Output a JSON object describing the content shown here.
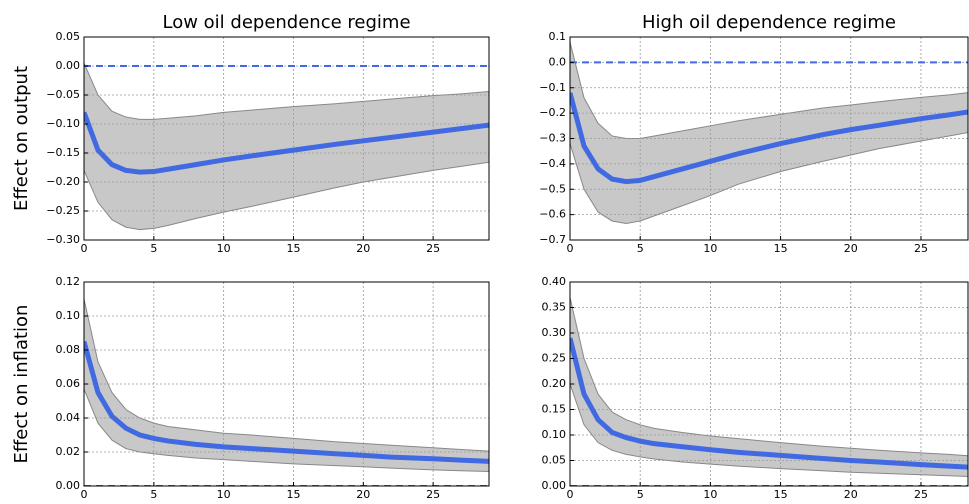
{
  "chart_data": [
    {
      "type": "line",
      "title": "Low oil dependence regime",
      "ylabel": "Effect on output",
      "x": [
        0,
        1,
        2,
        3,
        4,
        5,
        6,
        8,
        10,
        12,
        15,
        18,
        20,
        22,
        25,
        27,
        29
      ],
      "series": [
        {
          "color": "#4169e1",
          "values": [
            -0.08,
            -0.145,
            -0.17,
            -0.18,
            -0.183,
            -0.182,
            -0.178,
            -0.17,
            -0.162,
            -0.155,
            -0.145,
            -0.135,
            -0.129,
            -0.123,
            -0.114,
            -0.108,
            -0.102
          ]
        }
      ],
      "band": {
        "color": "#c8c8c8",
        "lower": [
          -0.18,
          -0.235,
          -0.265,
          -0.278,
          -0.282,
          -0.28,
          -0.275,
          -0.263,
          -0.252,
          -0.242,
          -0.226,
          -0.21,
          -0.2,
          -0.192,
          -0.18,
          -0.173,
          -0.166
        ],
        "upper": [
          0.005,
          -0.05,
          -0.078,
          -0.088,
          -0.092,
          -0.092,
          -0.09,
          -0.086,
          -0.08,
          -0.076,
          -0.07,
          -0.065,
          -0.061,
          -0.057,
          -0.051,
          -0.048,
          -0.044
        ]
      },
      "hline": 0,
      "hline_color": "#4169e1",
      "xlim": [
        0,
        29
      ],
      "ylim": [
        -0.3,
        0.05
      ],
      "xticks": [
        0,
        5,
        10,
        15,
        20,
        25
      ],
      "yticks": [
        0.05,
        {
          "value": 0,
          "label": "0.00"
        },
        {
          "value": -0.05,
          "label": "−0.05"
        },
        {
          "value": -0.1,
          "label": "−0.10"
        },
        {
          "value": -0.15,
          "label": "−0.15"
        },
        {
          "value": -0.2,
          "label": "−0.20"
        },
        {
          "value": -0.25,
          "label": "−0.25"
        },
        {
          "value": -0.3,
          "label": "−0.30"
        }
      ],
      "grid": true
    },
    {
      "type": "line",
      "title": "High oil dependence regime",
      "x": [
        0,
        1,
        2,
        3,
        4,
        5,
        6,
        8,
        10,
        12,
        15,
        18,
        20,
        22,
        25,
        27,
        29
      ],
      "series": [
        {
          "color": "#4169e1",
          "values": [
            -0.12,
            -0.33,
            -0.42,
            -0.46,
            -0.47,
            -0.465,
            -0.45,
            -0.42,
            -0.39,
            -0.36,
            -0.32,
            -0.285,
            -0.265,
            -0.248,
            -0.222,
            -0.207,
            -0.19
          ]
        }
      ],
      "band": {
        "color": "#c8c8c8",
        "lower": [
          -0.32,
          -0.5,
          -0.59,
          -0.625,
          -0.635,
          -0.625,
          -0.605,
          -0.565,
          -0.525,
          -0.48,
          -0.43,
          -0.39,
          -0.365,
          -0.34,
          -0.31,
          -0.29,
          -0.27
        ],
        "upper": [
          0.08,
          -0.14,
          -0.24,
          -0.29,
          -0.3,
          -0.3,
          -0.29,
          -0.27,
          -0.25,
          -0.23,
          -0.205,
          -0.18,
          -0.168,
          -0.155,
          -0.138,
          -0.128,
          -0.115
        ]
      },
      "hline": 0,
      "hline_color": "#4169e1",
      "xlim": [
        0,
        28.35
      ],
      "ylim": [
        -0.7,
        0.1
      ],
      "xticks": [
        0,
        5,
        10,
        15,
        20,
        25
      ],
      "yticks": [
        0.1,
        {
          "value": 0,
          "label": "0.0"
        },
        {
          "value": -0.1,
          "label": "−0.1"
        },
        {
          "value": -0.2,
          "label": "−0.2"
        },
        {
          "value": -0.3,
          "label": "−0.3"
        },
        {
          "value": -0.4,
          "label": "−0.4"
        },
        {
          "value": -0.5,
          "label": "−0.5"
        },
        {
          "value": -0.6,
          "label": "−0.6"
        },
        {
          "value": -0.7,
          "label": "−0.7"
        }
      ],
      "grid": true
    },
    {
      "type": "line",
      "ylabel": "Effect on inflation",
      "x": [
        0,
        1,
        2,
        3,
        4,
        5,
        6,
        8,
        10,
        12,
        15,
        18,
        20,
        22,
        25,
        27,
        29
      ],
      "series": [
        {
          "color": "#4169e1",
          "values": [
            0.085,
            0.055,
            0.041,
            0.034,
            0.03,
            0.028,
            0.0265,
            0.0245,
            0.023,
            0.022,
            0.0205,
            0.019,
            0.018,
            0.017,
            0.016,
            0.0152,
            0.0145
          ]
        }
      ],
      "band": {
        "color": "#c8c8c8",
        "lower": [
          0.057,
          0.037,
          0.027,
          0.022,
          0.02,
          0.019,
          0.018,
          0.0165,
          0.0155,
          0.0145,
          0.013,
          0.012,
          0.0113,
          0.0105,
          0.0095,
          0.009,
          0.0085
        ],
        "upper": [
          0.11,
          0.073,
          0.055,
          0.045,
          0.04,
          0.037,
          0.035,
          0.033,
          0.031,
          0.03,
          0.028,
          0.026,
          0.025,
          0.024,
          0.0225,
          0.0215,
          0.0205
        ]
      },
      "hline": 0,
      "hline_color": "#4169e1",
      "xlim": [
        0,
        29
      ],
      "ylim": [
        0,
        0.12
      ],
      "xticks": [
        0,
        5,
        10,
        15,
        20,
        25
      ],
      "yticks": [
        {
          "value": 0,
          "label": "0.00"
        },
        0.02,
        0.04,
        0.06,
        0.08,
        {
          "value": 0.1,
          "label": "0.10"
        },
        0.12
      ],
      "grid": true
    },
    {
      "type": "line",
      "x": [
        0,
        1,
        2,
        3,
        4,
        5,
        6,
        8,
        10,
        12,
        15,
        18,
        20,
        22,
        25,
        27,
        29
      ],
      "series": [
        {
          "color": "#4169e1",
          "values": [
            0.29,
            0.18,
            0.13,
            0.105,
            0.095,
            0.088,
            0.083,
            0.077,
            0.071,
            0.066,
            0.06,
            0.054,
            0.05,
            0.047,
            0.042,
            0.039,
            0.036
          ]
        }
      ],
      "band": {
        "color": "#c8c8c8",
        "lower": [
          0.2,
          0.12,
          0.085,
          0.07,
          0.062,
          0.057,
          0.053,
          0.047,
          0.043,
          0.039,
          0.034,
          0.03,
          0.027,
          0.025,
          0.022,
          0.02,
          0.018
        ],
        "upper": [
          0.37,
          0.25,
          0.18,
          0.145,
          0.13,
          0.12,
          0.113,
          0.105,
          0.098,
          0.093,
          0.085,
          0.078,
          0.074,
          0.07,
          0.065,
          0.062,
          0.058
        ]
      },
      "hline": 0,
      "hline_color": "#4169e1",
      "xlim": [
        0,
        28.35
      ],
      "ylim": [
        0,
        0.4
      ],
      "xticks": [
        0,
        5,
        10,
        15,
        20,
        25
      ],
      "yticks": [
        {
          "value": 0,
          "label": "0.00"
        },
        0.05,
        {
          "value": 0.1,
          "label": "0.10"
        },
        0.15,
        {
          "value": 0.2,
          "label": "0.20"
        },
        0.25,
        {
          "value": 0.3,
          "label": "0.30"
        },
        0.35,
        {
          "value": 0.4,
          "label": "0.40"
        }
      ],
      "grid": true
    }
  ]
}
